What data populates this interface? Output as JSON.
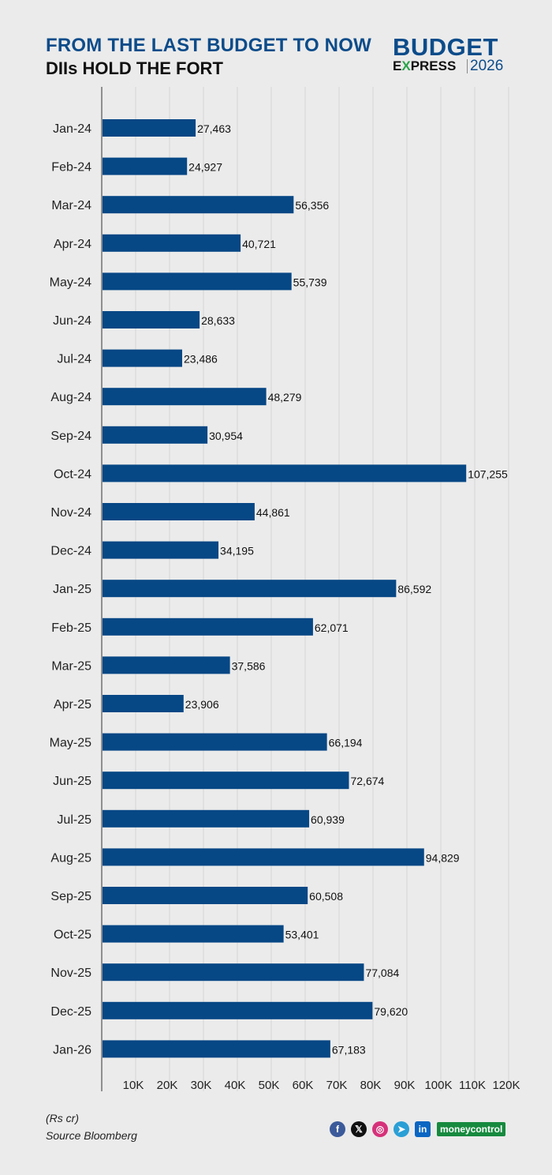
{
  "header": {
    "title": "FROM THE LAST BUDGET TO NOW",
    "subtitle": "DIIs HOLD THE FORT"
  },
  "logo": {
    "line1": "BUDGET",
    "line2_e": "E",
    "line2_x": "X",
    "line2_rest": "PRESS",
    "year": "2026"
  },
  "footer": {
    "unit": "(Rs cr)",
    "source": "Source Bloomberg",
    "social_icons": [
      "facebook-icon",
      "x-icon",
      "instagram-icon",
      "telegram-icon",
      "linkedin-icon"
    ],
    "brand": "moneycontrol"
  },
  "colors": {
    "bar": "#064785",
    "title": "#0c4c8a",
    "background": "#ebebeb",
    "brand_green": "#168a3e"
  },
  "chart_data": {
    "type": "bar",
    "orientation": "horizontal",
    "categories": [
      "Jan-24",
      "Feb-24",
      "Mar-24",
      "Apr-24",
      "May-24",
      "Jun-24",
      "Jul-24",
      "Aug-24",
      "Sep-24",
      "Oct-24",
      "Nov-24",
      "Dec-24",
      "Jan-25",
      "Feb-25",
      "Mar-25",
      "Apr-25",
      "May-25",
      "Jun-25",
      "Jul-25",
      "Aug-25",
      "Sep-25",
      "Oct-25",
      "Nov-25",
      "Dec-25",
      "Jan-26"
    ],
    "values": [
      27463,
      24927,
      56356,
      40721,
      55739,
      28633,
      23486,
      48279,
      30954,
      107255,
      44861,
      34195,
      86592,
      62071,
      37586,
      23906,
      66194,
      72674,
      60939,
      94829,
      60508,
      53401,
      77084,
      79620,
      67183
    ],
    "data_labels": [
      "27,463",
      "24,927",
      "56,356",
      "40,721",
      "55,739",
      "28,633",
      "23,486",
      "48,279",
      "30,954",
      "107,255",
      "44,861",
      "34,195",
      "86,592",
      "62,071",
      "37,586",
      "23,906",
      "66,194",
      "72,674",
      "60,939",
      "94,829",
      "60,508",
      "53,401",
      "77,084",
      "79,620",
      "67,183"
    ],
    "x_ticks": [
      "10K",
      "20K",
      "30K",
      "40K",
      "50K",
      "60K",
      "70K",
      "80K",
      "90K",
      "100K",
      "110K",
      "120K"
    ],
    "xlim": [
      0,
      120000
    ],
    "grid": "vertical"
  }
}
